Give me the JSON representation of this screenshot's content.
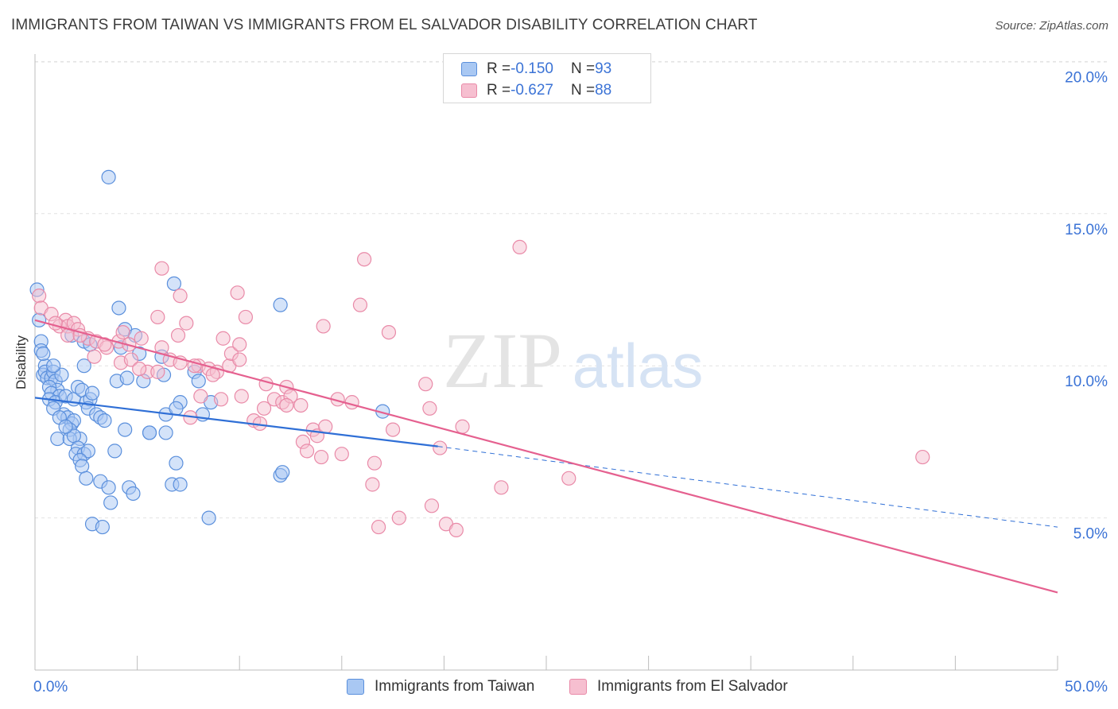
{
  "header": {
    "title": "IMMIGRANTS FROM TAIWAN VS IMMIGRANTS FROM EL SALVADOR DISABILITY CORRELATION CHART",
    "source": "Source: ZipAtlas.com"
  },
  "watermark": {
    "zip": "ZIP",
    "atlas": "atlas"
  },
  "legend": {
    "rows": [
      {
        "r_label": "R = ",
        "r_value": "-0.150",
        "n_label": "N = ",
        "n_value": "93"
      },
      {
        "r_label": "R = ",
        "r_value": "-0.627",
        "n_label": "N = ",
        "n_value": "88"
      }
    ]
  },
  "colors": {
    "taiwan_fill": "#a9c8f3",
    "taiwan_stroke": "#5a8fdc",
    "taiwan_line": "#2f6fd6",
    "elsalvador_fill": "#f6bfd0",
    "elsalvador_stroke": "#e98aa8",
    "elsalvador_line": "#e5608f",
    "axis_text": "#3b73d6",
    "grid": "#e2e2e2"
  },
  "chart_data": {
    "type": "scatter",
    "title": "IMMIGRANTS FROM TAIWAN VS IMMIGRANTS FROM EL SALVADOR DISABILITY CORRELATION CHART",
    "xlabel": "",
    "ylabel": "Disability",
    "xlim": [
      0,
      50
    ],
    "ylim": [
      0,
      21
    ],
    "x_tick_labels": [
      "0.0%",
      "50.0%"
    ],
    "y_ticks": [
      5,
      10,
      15,
      20
    ],
    "y_tick_labels": [
      "5.0%",
      "10.0%",
      "15.0%",
      "20.0%"
    ],
    "grid": true,
    "legend_position": "top-center",
    "series": [
      {
        "name": "Immigrants from Taiwan",
        "R": -0.15,
        "N": 93,
        "trend": {
          "x": [
            0,
            19.7
          ],
          "y": [
            8.95,
            7.35
          ],
          "dashed_extension": {
            "x": [
              19.7,
              50
            ],
            "y": [
              7.35,
              4.7
            ]
          }
        },
        "points": [
          [
            0.1,
            12.5
          ],
          [
            0.2,
            11.5
          ],
          [
            0.3,
            10.8
          ],
          [
            0.3,
            10.5
          ],
          [
            0.5,
            10.0
          ],
          [
            0.4,
            9.7
          ],
          [
            0.5,
            9.8
          ],
          [
            0.6,
            9.6
          ],
          [
            0.8,
            9.6
          ],
          [
            0.9,
            9.8
          ],
          [
            1.0,
            9.5
          ],
          [
            1.1,
            9.2
          ],
          [
            0.7,
            9.3
          ],
          [
            0.8,
            9.1
          ],
          [
            1.2,
            9.0
          ],
          [
            0.7,
            8.9
          ],
          [
            1.0,
            8.8
          ],
          [
            1.5,
            9.0
          ],
          [
            1.9,
            8.9
          ],
          [
            2.1,
            9.3
          ],
          [
            2.3,
            9.2
          ],
          [
            2.5,
            8.8
          ],
          [
            2.7,
            8.9
          ],
          [
            1.4,
            8.4
          ],
          [
            1.6,
            8.3
          ],
          [
            1.8,
            8.1
          ],
          [
            1.9,
            8.2
          ],
          [
            2.6,
            8.6
          ],
          [
            3.0,
            8.4
          ],
          [
            0.9,
            8.6
          ],
          [
            1.2,
            8.3
          ],
          [
            1.7,
            7.9
          ],
          [
            2.2,
            7.6
          ],
          [
            1.1,
            7.6
          ],
          [
            1.7,
            7.6
          ],
          [
            1.9,
            7.7
          ],
          [
            2.1,
            7.3
          ],
          [
            2.0,
            7.1
          ],
          [
            2.4,
            7.1
          ],
          [
            2.6,
            7.2
          ],
          [
            3.9,
            7.2
          ],
          [
            2.2,
            6.9
          ],
          [
            2.3,
            6.7
          ],
          [
            3.2,
            6.2
          ],
          [
            3.6,
            6.0
          ],
          [
            4.6,
            6.0
          ],
          [
            4.8,
            5.8
          ],
          [
            3.7,
            5.5
          ],
          [
            2.8,
            4.8
          ],
          [
            3.3,
            4.7
          ],
          [
            2.4,
            10.8
          ],
          [
            2.7,
            10.7
          ],
          [
            2.4,
            10.0
          ],
          [
            3.2,
            8.3
          ],
          [
            3.6,
            16.2
          ],
          [
            4.1,
            11.9
          ],
          [
            4.4,
            11.2
          ],
          [
            4.9,
            11.0
          ],
          [
            5.1,
            10.4
          ],
          [
            4.0,
            9.5
          ],
          [
            5.3,
            9.5
          ],
          [
            4.5,
            9.6
          ],
          [
            4.4,
            7.9
          ],
          [
            5.6,
            7.8
          ],
          [
            6.4,
            7.8
          ],
          [
            6.3,
            9.7
          ],
          [
            6.2,
            10.3
          ],
          [
            6.8,
            12.7
          ],
          [
            6.9,
            6.8
          ],
          [
            6.7,
            6.1
          ],
          [
            7.1,
            6.1
          ],
          [
            7.1,
            8.8
          ],
          [
            7.8,
            9.8
          ],
          [
            8.0,
            9.5
          ],
          [
            8.5,
            5.0
          ],
          [
            8.2,
            8.4
          ],
          [
            8.6,
            8.8
          ],
          [
            12.0,
            12.0
          ],
          [
            12.0,
            6.4
          ],
          [
            12.1,
            6.5
          ],
          [
            17.0,
            8.5
          ],
          [
            6.4,
            8.4
          ],
          [
            3.4,
            8.2
          ],
          [
            1.5,
            8.0
          ],
          [
            2.8,
            9.1
          ],
          [
            1.3,
            9.7
          ],
          [
            0.9,
            10.0
          ],
          [
            0.4,
            10.4
          ],
          [
            1.8,
            11.0
          ],
          [
            5.6,
            7.8
          ],
          [
            2.5,
            6.3
          ],
          [
            4.2,
            10.6
          ],
          [
            6.9,
            8.6
          ]
        ]
      },
      {
        "name": "Immigrants from El Salvador",
        "R": -0.627,
        "N": 88,
        "trend": {
          "x": [
            0,
            50
          ],
          "y": [
            11.5,
            2.55
          ]
        },
        "points": [
          [
            0.2,
            12.3
          ],
          [
            0.3,
            11.9
          ],
          [
            0.8,
            11.7
          ],
          [
            1.5,
            11.5
          ],
          [
            1.2,
            11.3
          ],
          [
            1.6,
            11.3
          ],
          [
            1.9,
            11.4
          ],
          [
            2.1,
            11.2
          ],
          [
            1.6,
            11.0
          ],
          [
            2.6,
            10.9
          ],
          [
            3.0,
            10.8
          ],
          [
            2.9,
            10.3
          ],
          [
            3.5,
            10.6
          ],
          [
            4.1,
            10.8
          ],
          [
            4.6,
            10.7
          ],
          [
            4.2,
            10.1
          ],
          [
            4.7,
            10.2
          ],
          [
            5.2,
            10.9
          ],
          [
            5.5,
            9.8
          ],
          [
            6.0,
            9.8
          ],
          [
            6.2,
            10.6
          ],
          [
            6.6,
            10.2
          ],
          [
            7.1,
            10.1
          ],
          [
            7.0,
            11.0
          ],
          [
            6.0,
            11.6
          ],
          [
            6.2,
            13.2
          ],
          [
            7.1,
            12.3
          ],
          [
            7.4,
            11.4
          ],
          [
            8.0,
            10.0
          ],
          [
            8.1,
            9.0
          ],
          [
            8.5,
            9.9
          ],
          [
            8.9,
            9.8
          ],
          [
            9.2,
            10.9
          ],
          [
            9.5,
            10.0
          ],
          [
            9.6,
            10.4
          ],
          [
            10.0,
            10.2
          ],
          [
            10.0,
            10.7
          ],
          [
            10.3,
            11.6
          ],
          [
            9.9,
            12.4
          ],
          [
            7.8,
            10.0
          ],
          [
            7.6,
            8.3
          ],
          [
            9.1,
            8.9
          ],
          [
            10.1,
            9.0
          ],
          [
            10.7,
            8.2
          ],
          [
            11.2,
            8.6
          ],
          [
            11.3,
            9.4
          ],
          [
            11.7,
            8.9
          ],
          [
            12.1,
            8.8
          ],
          [
            12.3,
            9.3
          ],
          [
            12.5,
            9.0
          ],
          [
            12.3,
            8.7
          ],
          [
            13.0,
            8.7
          ],
          [
            13.1,
            7.5
          ],
          [
            13.3,
            7.2
          ],
          [
            13.6,
            7.9
          ],
          [
            13.8,
            7.7
          ],
          [
            14.0,
            7.0
          ],
          [
            14.2,
            8.0
          ],
          [
            14.8,
            8.9
          ],
          [
            15.0,
            7.1
          ],
          [
            15.5,
            8.8
          ],
          [
            15.9,
            12.0
          ],
          [
            16.1,
            13.5
          ],
          [
            14.1,
            11.3
          ],
          [
            16.5,
            6.1
          ],
          [
            16.6,
            6.8
          ],
          [
            16.8,
            4.7
          ],
          [
            17.3,
            11.1
          ],
          [
            17.5,
            7.9
          ],
          [
            17.8,
            5.0
          ],
          [
            19.1,
            9.4
          ],
          [
            19.3,
            8.6
          ],
          [
            19.4,
            5.4
          ],
          [
            19.8,
            7.3
          ],
          [
            20.1,
            4.8
          ],
          [
            20.6,
            4.6
          ],
          [
            20.9,
            8.0
          ],
          [
            22.8,
            6.0
          ],
          [
            23.7,
            13.9
          ],
          [
            26.1,
            6.3
          ],
          [
            43.4,
            7.0
          ],
          [
            3.4,
            10.7
          ],
          [
            5.1,
            9.9
          ],
          [
            11.0,
            8.1
          ],
          [
            2.2,
            11.0
          ],
          [
            4.3,
            11.1
          ],
          [
            8.7,
            9.7
          ],
          [
            1.0,
            11.4
          ]
        ]
      }
    ]
  },
  "bottom_legend": {
    "taiwan": "Immigrants from Taiwan",
    "elsalvador": "Immigrants from El Salvador"
  },
  "axes": {
    "ylabel": "Disability",
    "x_min_label": "0.0%",
    "x_max_label": "50.0%"
  }
}
